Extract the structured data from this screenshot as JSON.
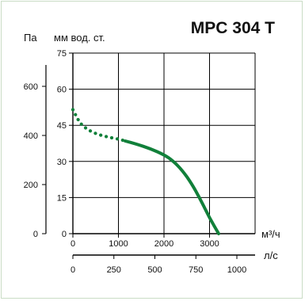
{
  "colors": {
    "curve": "#11803a",
    "grid": "#000000",
    "frame": "#c9dcc5"
  },
  "chart_data": {
    "type": "line",
    "title": "MPC 304 T",
    "ylabel_pa": "Па",
    "ylabel_mm": "мм вод. ст.",
    "xlabel_m3h": "м³/ч",
    "xlabel_ls": "л/с",
    "x_m3h_ticks": [
      "0",
      "1000",
      "2000",
      "3000"
    ],
    "x_ls_ticks": [
      "0",
      "250",
      "500",
      "750",
      "1000"
    ],
    "y_mm_ticks": [
      "0",
      "15",
      "30",
      "45",
      "60",
      "75"
    ],
    "y_pa_ticks": [
      "0",
      "200",
      "400",
      "600"
    ],
    "xlim": [
      0,
      4000
    ],
    "ylim": [
      0,
      75
    ],
    "grid": true,
    "series": [
      {
        "style": "dotted",
        "x": [
          0,
          150,
          300,
          500,
          750,
          1000,
          1150
        ],
        "y": [
          51.5,
          46,
          43.5,
          41.5,
          40.2,
          39.3,
          38.5
        ]
      },
      {
        "style": "solid",
        "x": [
          1150,
          1400,
          1700,
          2000,
          2200,
          2400,
          2600,
          2800,
          3000,
          3200
        ],
        "y": [
          38.5,
          37.2,
          35.3,
          32.8,
          30.2,
          26.3,
          21,
          14.2,
          6.5,
          0
        ]
      }
    ]
  }
}
